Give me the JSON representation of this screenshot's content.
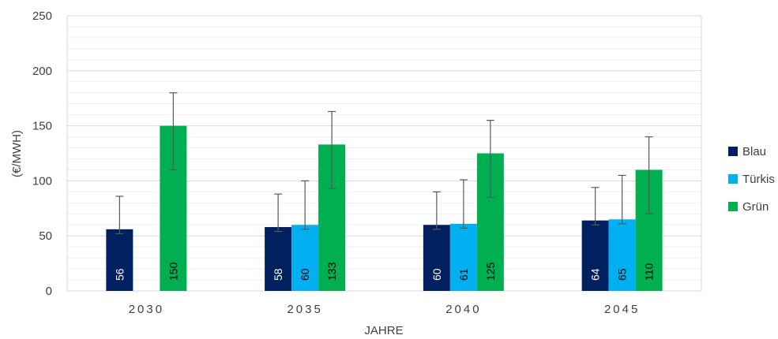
{
  "chart_data": {
    "type": "bar",
    "title": "",
    "xlabel": "JAHRE",
    "ylabel": "(€/MWH)",
    "ylim": [
      0,
      250
    ],
    "yticks": [
      0,
      50,
      100,
      150,
      200,
      250
    ],
    "grid": "horizontal",
    "legend_position": "right",
    "categories": [
      "2030",
      "2035",
      "2040",
      "2045"
    ],
    "series": [
      {
        "name": "Blau",
        "color": "#002060",
        "label_color": "#ffffff",
        "values": [
          56,
          58,
          60,
          64
        ],
        "error_low": [
          52,
          54,
          56,
          60
        ],
        "error_high": [
          86,
          88,
          90,
          94
        ]
      },
      {
        "name": "Türkis",
        "color": "#00B0F0",
        "label_color": "#000000",
        "values": [
          null,
          60,
          61,
          65
        ],
        "error_low": [
          null,
          56,
          57,
          61
        ],
        "error_high": [
          null,
          100,
          101,
          105
        ]
      },
      {
        "name": "Grün",
        "color": "#00B050",
        "label_color": "#000000",
        "values": [
          150,
          133,
          125,
          110
        ],
        "error_low": [
          110,
          93,
          85,
          70
        ],
        "error_high": [
          180,
          163,
          155,
          140
        ]
      }
    ]
  }
}
